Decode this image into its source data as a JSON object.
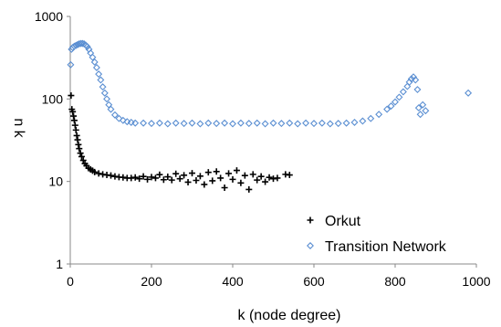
{
  "chart_data": {
    "type": "scatter",
    "xlabel": "k (node degree)",
    "ylabel": "n k",
    "x_ticks": [
      "0",
      "200",
      "400",
      "600",
      "800",
      "1000"
    ],
    "y_ticks": [
      "1",
      "10",
      "100",
      "1000"
    ],
    "xlim": [
      0,
      1000
    ],
    "ylim": [
      1,
      1000
    ],
    "y_scale": "log",
    "legend_position": "bottom-right",
    "series": [
      {
        "name": "Orkut",
        "marker": "plus",
        "color": "#000000",
        "points": [
          [
            2,
            110
          ],
          [
            4,
            75
          ],
          [
            6,
            70
          ],
          [
            8,
            62
          ],
          [
            10,
            55
          ],
          [
            12,
            48
          ],
          [
            14,
            42
          ],
          [
            16,
            36
          ],
          [
            18,
            32
          ],
          [
            20,
            28
          ],
          [
            22,
            25
          ],
          [
            25,
            22
          ],
          [
            28,
            20
          ],
          [
            32,
            18
          ],
          [
            36,
            16.5
          ],
          [
            40,
            15.5
          ],
          [
            45,
            14.5
          ],
          [
            50,
            14
          ],
          [
            55,
            13.5
          ],
          [
            60,
            13
          ],
          [
            70,
            12.5
          ],
          [
            80,
            12.2
          ],
          [
            90,
            12
          ],
          [
            100,
            11.8
          ],
          [
            110,
            11.5
          ],
          [
            120,
            11.3
          ],
          [
            130,
            11.2
          ],
          [
            140,
            11
          ],
          [
            150,
            11
          ],
          [
            160,
            11.2
          ],
          [
            170,
            10.8
          ],
          [
            180,
            11.5
          ],
          [
            190,
            10.6
          ],
          [
            200,
            11.3
          ],
          [
            210,
            11
          ],
          [
            220,
            12.1
          ],
          [
            230,
            10.5
          ],
          [
            240,
            11.4
          ],
          [
            250,
            10.4
          ],
          [
            260,
            12.4
          ],
          [
            270,
            10.8
          ],
          [
            280,
            11.9
          ],
          [
            290,
            9.8
          ],
          [
            300,
            12.6
          ],
          [
            310,
            10.3
          ],
          [
            320,
            11.6
          ],
          [
            330,
            9.2
          ],
          [
            340,
            12.9
          ],
          [
            350,
            10.2
          ],
          [
            360,
            13.2
          ],
          [
            370,
            11
          ],
          [
            380,
            8.4
          ],
          [
            390,
            12.5
          ],
          [
            400,
            10.6
          ],
          [
            410,
            13.6
          ],
          [
            420,
            9.6
          ],
          [
            430,
            11.8
          ],
          [
            440,
            8
          ],
          [
            450,
            12.2
          ],
          [
            460,
            10.4
          ],
          [
            470,
            11.5
          ],
          [
            480,
            9.9
          ],
          [
            490,
            11.2
          ],
          [
            500,
            10.8
          ],
          [
            510,
            11
          ],
          [
            530,
            12.2
          ],
          [
            540,
            12
          ]
        ]
      },
      {
        "name": "Transition Network",
        "marker": "diamond",
        "color": "#5b8fd2",
        "points": [
          [
            1,
            260
          ],
          [
            3,
            400
          ],
          [
            6,
            420
          ],
          [
            10,
            435
          ],
          [
            14,
            445
          ],
          [
            18,
            455
          ],
          [
            22,
            465
          ],
          [
            26,
            470
          ],
          [
            30,
            470
          ],
          [
            34,
            465
          ],
          [
            38,
            450
          ],
          [
            42,
            430
          ],
          [
            46,
            400
          ],
          [
            50,
            360
          ],
          [
            55,
            320
          ],
          [
            60,
            280
          ],
          [
            65,
            240
          ],
          [
            70,
            200
          ],
          [
            75,
            170
          ],
          [
            80,
            140
          ],
          [
            85,
            118
          ],
          [
            90,
            100
          ],
          [
            95,
            85
          ],
          [
            100,
            75
          ],
          [
            110,
            64
          ],
          [
            120,
            58
          ],
          [
            130,
            55
          ],
          [
            140,
            53
          ],
          [
            150,
            52
          ],
          [
            160,
            51
          ],
          [
            180,
            51
          ],
          [
            200,
            50.5
          ],
          [
            220,
            51
          ],
          [
            240,
            50
          ],
          [
            260,
            51
          ],
          [
            280,
            50.5
          ],
          [
            300,
            51
          ],
          [
            320,
            50
          ],
          [
            340,
            51
          ],
          [
            360,
            50.5
          ],
          [
            380,
            51
          ],
          [
            400,
            50
          ],
          [
            420,
            51
          ],
          [
            440,
            50.5
          ],
          [
            460,
            51
          ],
          [
            480,
            50
          ],
          [
            500,
            51
          ],
          [
            520,
            50.5
          ],
          [
            540,
            51
          ],
          [
            560,
            50
          ],
          [
            580,
            51
          ],
          [
            600,
            50.5
          ],
          [
            620,
            51
          ],
          [
            640,
            50
          ],
          [
            660,
            50.5
          ],
          [
            680,
            51
          ],
          [
            700,
            52
          ],
          [
            720,
            54
          ],
          [
            740,
            58
          ],
          [
            760,
            65
          ],
          [
            780,
            75
          ],
          [
            790,
            82
          ],
          [
            800,
            92
          ],
          [
            810,
            105
          ],
          [
            820,
            122
          ],
          [
            830,
            142
          ],
          [
            835,
            160
          ],
          [
            840,
            175
          ],
          [
            845,
            185
          ],
          [
            850,
            170
          ],
          [
            855,
            130
          ],
          [
            858,
            78
          ],
          [
            862,
            65
          ],
          [
            868,
            85
          ],
          [
            875,
            72
          ],
          [
            980,
            118
          ]
        ]
      }
    ]
  }
}
